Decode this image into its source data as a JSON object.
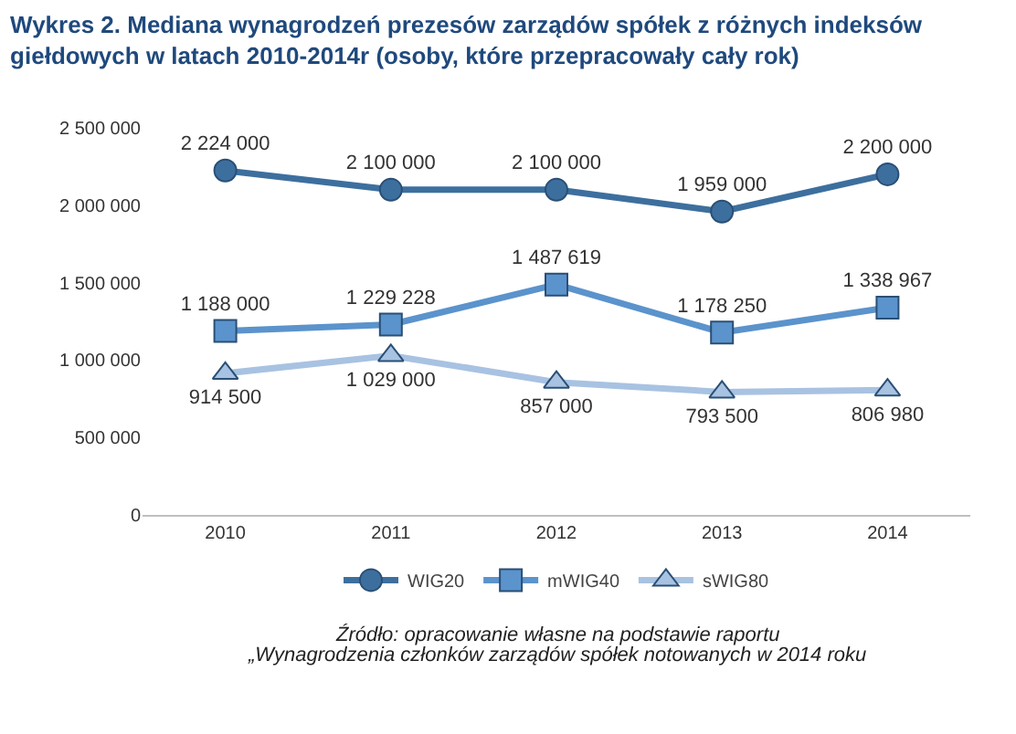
{
  "chart_data": {
    "type": "line",
    "title": "Wykres 2. Mediana wynagrodzeń prezesów zarządów spółek z różnych indeksów giełdowych w latach 2010-2014r (osoby, które przepracowały cały rok)",
    "categories": [
      "2010",
      "2011",
      "2012",
      "2013",
      "2014"
    ],
    "series": [
      {
        "name": "WIG20",
        "color": "#3d6f9e",
        "marker": "circle",
        "values": [
          2224000,
          2100000,
          2100000,
          1959000,
          2200000
        ],
        "value_labels": [
          "2 224 000",
          "2 100 000",
          "2 100 000",
          "1 959 000",
          "2 200 000"
        ]
      },
      {
        "name": "mWIG40",
        "color": "#5b93cc",
        "marker": "square",
        "values": [
          1188000,
          1229228,
          1487619,
          1178250,
          1338967
        ],
        "value_labels": [
          "1 188 000",
          "1 229 228",
          "1 487 619",
          "1 178 250",
          "1 338 967"
        ]
      },
      {
        "name": "sWIG80",
        "color": "#a8c2e2",
        "marker": "triangle",
        "values": [
          914500,
          1029000,
          857000,
          793500,
          806980
        ],
        "value_labels": [
          "914 500",
          "1 029 000",
          "857 000",
          "793 500",
          "806 980"
        ]
      }
    ],
    "ylim": [
      0,
      2500000
    ],
    "yticks": [
      0,
      {
        "value": 500000,
        "label": "500 000"
      },
      {
        "value": 1000000,
        "label": "1 000 000"
      },
      {
        "value": 1500000,
        "label": "1 500 000"
      },
      {
        "value": 2000000,
        "label": "2 000 000"
      },
      {
        "value": 2500000,
        "label": "2 500 000"
      }
    ],
    "grid": false,
    "legend": "bottom",
    "annotations": [
      "Źródło: opracowanie własne na podstawie raportu",
      "„Wynagrodzenia członków zarządów spółek notowanych w 2014 roku"
    ]
  }
}
